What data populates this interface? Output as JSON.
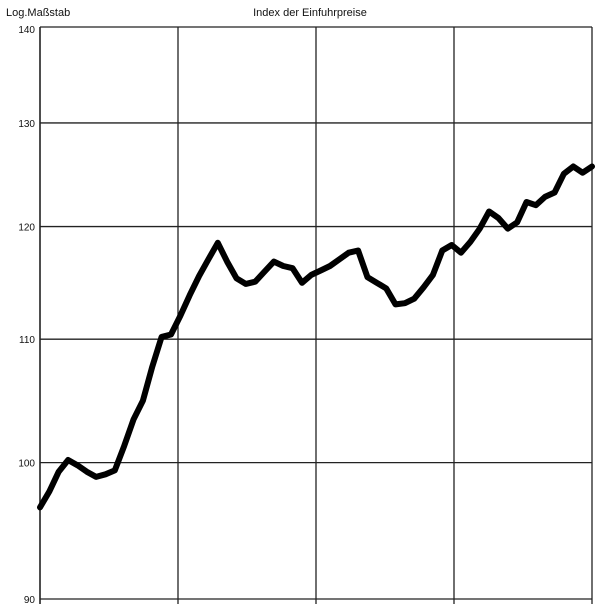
{
  "chart_data": {
    "type": "line",
    "title": "Index der Einfuhrpreise",
    "ylabel": "Log.Maßstab",
    "yscale": "log",
    "ylim": [
      90,
      140
    ],
    "yticks": [
      90,
      100,
      110,
      120,
      130,
      140
    ],
    "xlim": [
      0,
      48
    ],
    "grid": true,
    "line_color": "#000000",
    "series": [
      {
        "values": [
          96.6,
          97.8,
          99.3,
          100.2,
          99.8,
          99.3,
          98.9,
          99.1,
          99.4,
          101.3,
          103.4,
          104.9,
          107.7,
          110.2,
          110.4,
          112.0,
          113.8,
          115.5,
          117.0,
          118.5,
          116.8,
          115.3,
          114.8,
          115.0,
          115.9,
          116.8,
          116.4,
          116.2,
          114.9,
          115.6,
          116.0,
          116.4,
          117.0,
          117.6,
          117.8,
          115.4,
          114.9,
          114.4,
          113.0,
          113.1,
          113.5,
          114.5,
          115.6,
          117.8,
          118.3,
          117.6,
          118.6,
          119.8,
          121.4,
          120.8,
          119.8,
          120.4,
          122.3,
          122.0,
          122.8,
          123.2,
          125.0,
          125.7,
          125.1,
          125.7
        ]
      }
    ]
  }
}
